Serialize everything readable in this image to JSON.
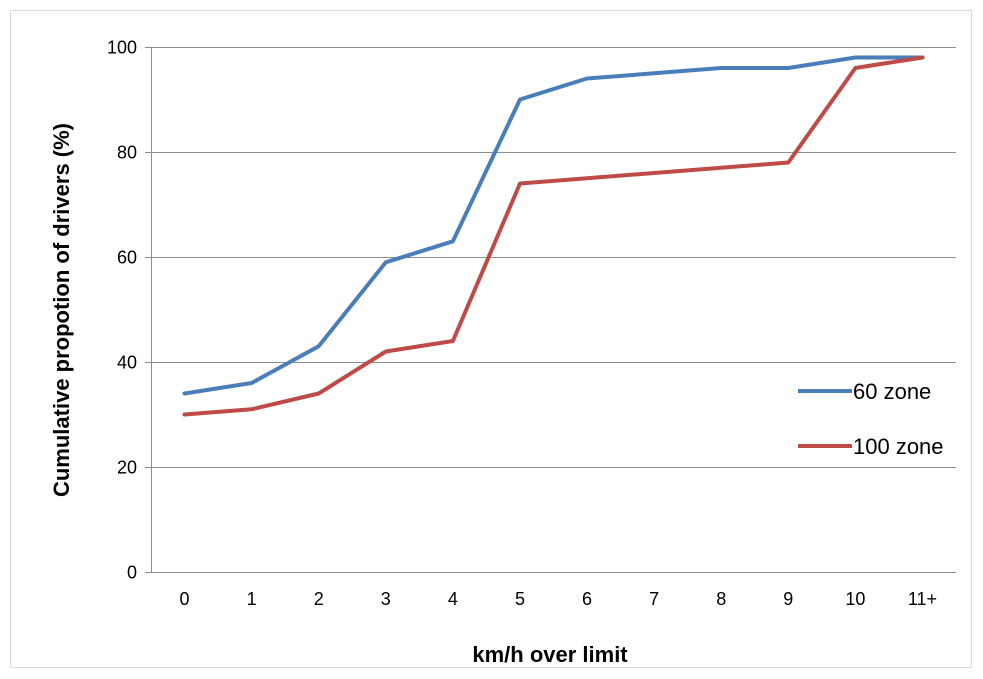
{
  "chart_data": {
    "type": "line",
    "title": "",
    "xlabel": "km/h over limit",
    "ylabel": "Cumulative propotion of drivers (%)",
    "categories": [
      "0",
      "1",
      "2",
      "3",
      "4",
      "5",
      "6",
      "7",
      "8",
      "9",
      "10",
      "11+"
    ],
    "ylim": [
      0,
      100
    ],
    "yticks": [
      0,
      20,
      40,
      60,
      80,
      100
    ],
    "grid": true,
    "legend_position": "right",
    "series": [
      {
        "name": "60 zone",
        "color": "#4a7ebb",
        "values": [
          34,
          36,
          43,
          59,
          63,
          90,
          94,
          95,
          96,
          96,
          98,
          98
        ]
      },
      {
        "name": "100 zone",
        "color": "#be4b48",
        "values": [
          30,
          31,
          34,
          42,
          44,
          74,
          75,
          76,
          77,
          78,
          96,
          98
        ]
      }
    ]
  }
}
